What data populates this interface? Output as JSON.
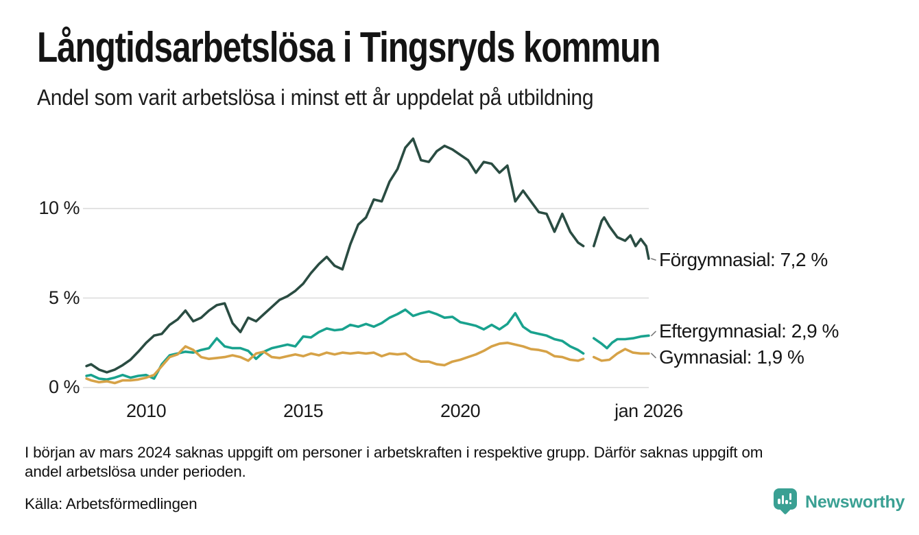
{
  "header": {
    "title": "Långtidsarbetslösa i Tingsryds kommun",
    "subtitle": "Andel som varit arbetslösa i minst ett år uppdelat på utbildning"
  },
  "chart_data": {
    "type": "line",
    "title": "Långtidsarbetslösa i Tingsryds kommun",
    "subtitle": "Andel som varit arbetslösa i minst ett år uppdelat på utbildning",
    "x_unit": "decimal_year",
    "xlim": [
      2008,
      2026.3
    ],
    "ylim": [
      0,
      14.3
    ],
    "grid": "horizontal",
    "legend_position": "end-of-line-labels",
    "y_ticks": [
      {
        "value": 0,
        "label": "0 %"
      },
      {
        "value": 5,
        "label": "5 %"
      },
      {
        "value": 10,
        "label": "10 %"
      }
    ],
    "x_ticks": [
      {
        "value": 2010,
        "label": "2010"
      },
      {
        "value": 2015,
        "label": "2015"
      },
      {
        "value": 2020,
        "label": "2020"
      },
      {
        "value": 2026.0,
        "label": "jan 2026"
      }
    ],
    "missing_data_gap_years": [
      2023.95,
      2024.2
    ],
    "series": [
      {
        "name": "Förgymnasial",
        "end_label": "Förgymnasial: 7,2 %",
        "end_value": "7,2 %",
        "color": "#2a4c42",
        "points": [
          [
            2008.1,
            1.2
          ],
          [
            2008.25,
            1.3
          ],
          [
            2008.5,
            1.0
          ],
          [
            2008.75,
            0.85
          ],
          [
            2009.0,
            1.0
          ],
          [
            2009.25,
            1.25
          ],
          [
            2009.5,
            1.55
          ],
          [
            2009.75,
            2.0
          ],
          [
            2010.0,
            2.5
          ],
          [
            2010.25,
            2.9
          ],
          [
            2010.5,
            3.0
          ],
          [
            2010.75,
            3.5
          ],
          [
            2011.0,
            3.8
          ],
          [
            2011.25,
            4.3
          ],
          [
            2011.5,
            3.7
          ],
          [
            2011.75,
            3.9
          ],
          [
            2012.0,
            4.3
          ],
          [
            2012.25,
            4.6
          ],
          [
            2012.5,
            4.7
          ],
          [
            2012.75,
            3.6
          ],
          [
            2013.0,
            3.1
          ],
          [
            2013.25,
            3.9
          ],
          [
            2013.5,
            3.7
          ],
          [
            2013.75,
            4.1
          ],
          [
            2014.0,
            4.5
          ],
          [
            2014.25,
            4.9
          ],
          [
            2014.5,
            5.1
          ],
          [
            2014.75,
            5.4
          ],
          [
            2015.0,
            5.8
          ],
          [
            2015.25,
            6.4
          ],
          [
            2015.5,
            6.9
          ],
          [
            2015.75,
            7.3
          ],
          [
            2016.0,
            6.8
          ],
          [
            2016.25,
            6.6
          ],
          [
            2016.5,
            8.0
          ],
          [
            2016.75,
            9.1
          ],
          [
            2017.0,
            9.5
          ],
          [
            2017.25,
            10.5
          ],
          [
            2017.5,
            10.4
          ],
          [
            2017.75,
            11.5
          ],
          [
            2018.0,
            12.2
          ],
          [
            2018.25,
            13.4
          ],
          [
            2018.5,
            13.9
          ],
          [
            2018.75,
            12.7
          ],
          [
            2019.0,
            12.6
          ],
          [
            2019.25,
            13.2
          ],
          [
            2019.5,
            13.5
          ],
          [
            2019.75,
            13.3
          ],
          [
            2020.0,
            13.0
          ],
          [
            2020.25,
            12.7
          ],
          [
            2020.5,
            12.0
          ],
          [
            2020.75,
            12.6
          ],
          [
            2021.0,
            12.5
          ],
          [
            2021.25,
            12.0
          ],
          [
            2021.5,
            12.4
          ],
          [
            2021.75,
            10.4
          ],
          [
            2022.0,
            11.0
          ],
          [
            2022.25,
            10.4
          ],
          [
            2022.5,
            9.8
          ],
          [
            2022.75,
            9.7
          ],
          [
            2023.0,
            8.7
          ],
          [
            2023.25,
            9.7
          ],
          [
            2023.5,
            8.7
          ],
          [
            2023.75,
            8.1
          ],
          [
            2023.92,
            7.9
          ],
          [
            2024.08,
            null
          ],
          [
            2024.25,
            7.9
          ],
          [
            2024.5,
            9.3
          ],
          [
            2024.58,
            9.5
          ],
          [
            2024.75,
            9.0
          ],
          [
            2025.0,
            8.4
          ],
          [
            2025.25,
            8.2
          ],
          [
            2025.42,
            8.5
          ],
          [
            2025.58,
            7.9
          ],
          [
            2025.75,
            8.3
          ],
          [
            2025.92,
            7.9
          ],
          [
            2026.0,
            7.2
          ]
        ]
      },
      {
        "name": "Eftergymnasial",
        "end_label": "Eftergymnasial: 2,9 %",
        "end_value": "2,9 %",
        "color": "#19a28e",
        "points": [
          [
            2008.1,
            0.65
          ],
          [
            2008.25,
            0.7
          ],
          [
            2008.5,
            0.5
          ],
          [
            2008.75,
            0.45
          ],
          [
            2009.0,
            0.55
          ],
          [
            2009.25,
            0.7
          ],
          [
            2009.5,
            0.55
          ],
          [
            2009.75,
            0.65
          ],
          [
            2010.0,
            0.7
          ],
          [
            2010.25,
            0.5
          ],
          [
            2010.5,
            1.3
          ],
          [
            2010.75,
            1.8
          ],
          [
            2011.0,
            1.9
          ],
          [
            2011.25,
            2.0
          ],
          [
            2011.5,
            1.95
          ],
          [
            2011.75,
            2.1
          ],
          [
            2012.0,
            2.2
          ],
          [
            2012.25,
            2.75
          ],
          [
            2012.5,
            2.3
          ],
          [
            2012.75,
            2.2
          ],
          [
            2013.0,
            2.2
          ],
          [
            2013.25,
            2.05
          ],
          [
            2013.5,
            1.6
          ],
          [
            2013.75,
            2.0
          ],
          [
            2014.0,
            2.2
          ],
          [
            2014.25,
            2.3
          ],
          [
            2014.5,
            2.4
          ],
          [
            2014.75,
            2.3
          ],
          [
            2015.0,
            2.85
          ],
          [
            2015.25,
            2.8
          ],
          [
            2015.5,
            3.1
          ],
          [
            2015.75,
            3.3
          ],
          [
            2016.0,
            3.2
          ],
          [
            2016.25,
            3.25
          ],
          [
            2016.5,
            3.5
          ],
          [
            2016.75,
            3.4
          ],
          [
            2017.0,
            3.55
          ],
          [
            2017.25,
            3.4
          ],
          [
            2017.5,
            3.6
          ],
          [
            2017.75,
            3.9
          ],
          [
            2018.0,
            4.1
          ],
          [
            2018.25,
            4.35
          ],
          [
            2018.5,
            4.0
          ],
          [
            2018.75,
            4.15
          ],
          [
            2019.0,
            4.25
          ],
          [
            2019.25,
            4.1
          ],
          [
            2019.5,
            3.9
          ],
          [
            2019.75,
            3.95
          ],
          [
            2020.0,
            3.65
          ],
          [
            2020.25,
            3.55
          ],
          [
            2020.5,
            3.45
          ],
          [
            2020.75,
            3.25
          ],
          [
            2021.0,
            3.5
          ],
          [
            2021.25,
            3.25
          ],
          [
            2021.5,
            3.55
          ],
          [
            2021.75,
            4.15
          ],
          [
            2022.0,
            3.4
          ],
          [
            2022.25,
            3.1
          ],
          [
            2022.5,
            3.0
          ],
          [
            2022.75,
            2.9
          ],
          [
            2023.0,
            2.7
          ],
          [
            2023.25,
            2.6
          ],
          [
            2023.5,
            2.3
          ],
          [
            2023.75,
            2.1
          ],
          [
            2023.92,
            1.9
          ],
          [
            2024.08,
            null
          ],
          [
            2024.25,
            2.75
          ],
          [
            2024.5,
            2.45
          ],
          [
            2024.67,
            2.2
          ],
          [
            2024.83,
            2.5
          ],
          [
            2025.0,
            2.7
          ],
          [
            2025.25,
            2.7
          ],
          [
            2025.5,
            2.75
          ],
          [
            2025.75,
            2.85
          ],
          [
            2026.0,
            2.9
          ]
        ]
      },
      {
        "name": "Gymnasial",
        "end_label": "Gymnasial: 1,9 %",
        "end_value": "1,9 %",
        "color": "#d6a247",
        "points": [
          [
            2008.1,
            0.5
          ],
          [
            2008.25,
            0.4
          ],
          [
            2008.5,
            0.3
          ],
          [
            2008.75,
            0.35
          ],
          [
            2009.0,
            0.25
          ],
          [
            2009.25,
            0.4
          ],
          [
            2009.5,
            0.4
          ],
          [
            2009.75,
            0.45
          ],
          [
            2010.0,
            0.55
          ],
          [
            2010.25,
            0.7
          ],
          [
            2010.5,
            1.2
          ],
          [
            2010.75,
            1.7
          ],
          [
            2011.0,
            1.85
          ],
          [
            2011.25,
            2.3
          ],
          [
            2011.5,
            2.1
          ],
          [
            2011.75,
            1.7
          ],
          [
            2012.0,
            1.6
          ],
          [
            2012.25,
            1.65
          ],
          [
            2012.5,
            1.7
          ],
          [
            2012.75,
            1.8
          ],
          [
            2013.0,
            1.7
          ],
          [
            2013.25,
            1.5
          ],
          [
            2013.5,
            1.9
          ],
          [
            2013.75,
            2.0
          ],
          [
            2014.0,
            1.7
          ],
          [
            2014.25,
            1.65
          ],
          [
            2014.5,
            1.75
          ],
          [
            2014.75,
            1.85
          ],
          [
            2015.0,
            1.75
          ],
          [
            2015.25,
            1.9
          ],
          [
            2015.5,
            1.8
          ],
          [
            2015.75,
            1.95
          ],
          [
            2016.0,
            1.85
          ],
          [
            2016.25,
            1.95
          ],
          [
            2016.5,
            1.9
          ],
          [
            2016.75,
            1.95
          ],
          [
            2017.0,
            1.9
          ],
          [
            2017.25,
            1.95
          ],
          [
            2017.5,
            1.75
          ],
          [
            2017.75,
            1.9
          ],
          [
            2018.0,
            1.85
          ],
          [
            2018.25,
            1.9
          ],
          [
            2018.5,
            1.6
          ],
          [
            2018.75,
            1.45
          ],
          [
            2019.0,
            1.45
          ],
          [
            2019.25,
            1.3
          ],
          [
            2019.5,
            1.25
          ],
          [
            2019.75,
            1.45
          ],
          [
            2020.0,
            1.55
          ],
          [
            2020.25,
            1.7
          ],
          [
            2020.5,
            1.85
          ],
          [
            2020.75,
            2.05
          ],
          [
            2021.0,
            2.3
          ],
          [
            2021.25,
            2.45
          ],
          [
            2021.5,
            2.5
          ],
          [
            2021.75,
            2.4
          ],
          [
            2022.0,
            2.3
          ],
          [
            2022.25,
            2.15
          ],
          [
            2022.5,
            2.1
          ],
          [
            2022.75,
            2.0
          ],
          [
            2023.0,
            1.75
          ],
          [
            2023.25,
            1.7
          ],
          [
            2023.5,
            1.55
          ],
          [
            2023.75,
            1.5
          ],
          [
            2023.92,
            1.6
          ],
          [
            2024.08,
            null
          ],
          [
            2024.25,
            1.7
          ],
          [
            2024.5,
            1.5
          ],
          [
            2024.75,
            1.55
          ],
          [
            2025.0,
            1.9
          ],
          [
            2025.25,
            2.15
          ],
          [
            2025.5,
            1.95
          ],
          [
            2025.75,
            1.9
          ],
          [
            2026.0,
            1.9
          ]
        ]
      }
    ]
  },
  "footnote": {
    "line1": "I början av mars 2024 saknas uppgift om personer i arbetskraften i respektive grupp. Därför saknas uppgift om",
    "line2": "andel arbetslösa under perioden."
  },
  "source": {
    "text": "Källa: Arbetsförmedlingen"
  },
  "logo": {
    "brand": "Newsworthy",
    "color": "#3aa093"
  },
  "colors": {
    "forgymnasial": "#2a4c42",
    "eftergymnasial": "#19a28e",
    "gymnasial": "#d6a247",
    "gridline": "#e3e3e3",
    "text": "#1a1a1a"
  }
}
